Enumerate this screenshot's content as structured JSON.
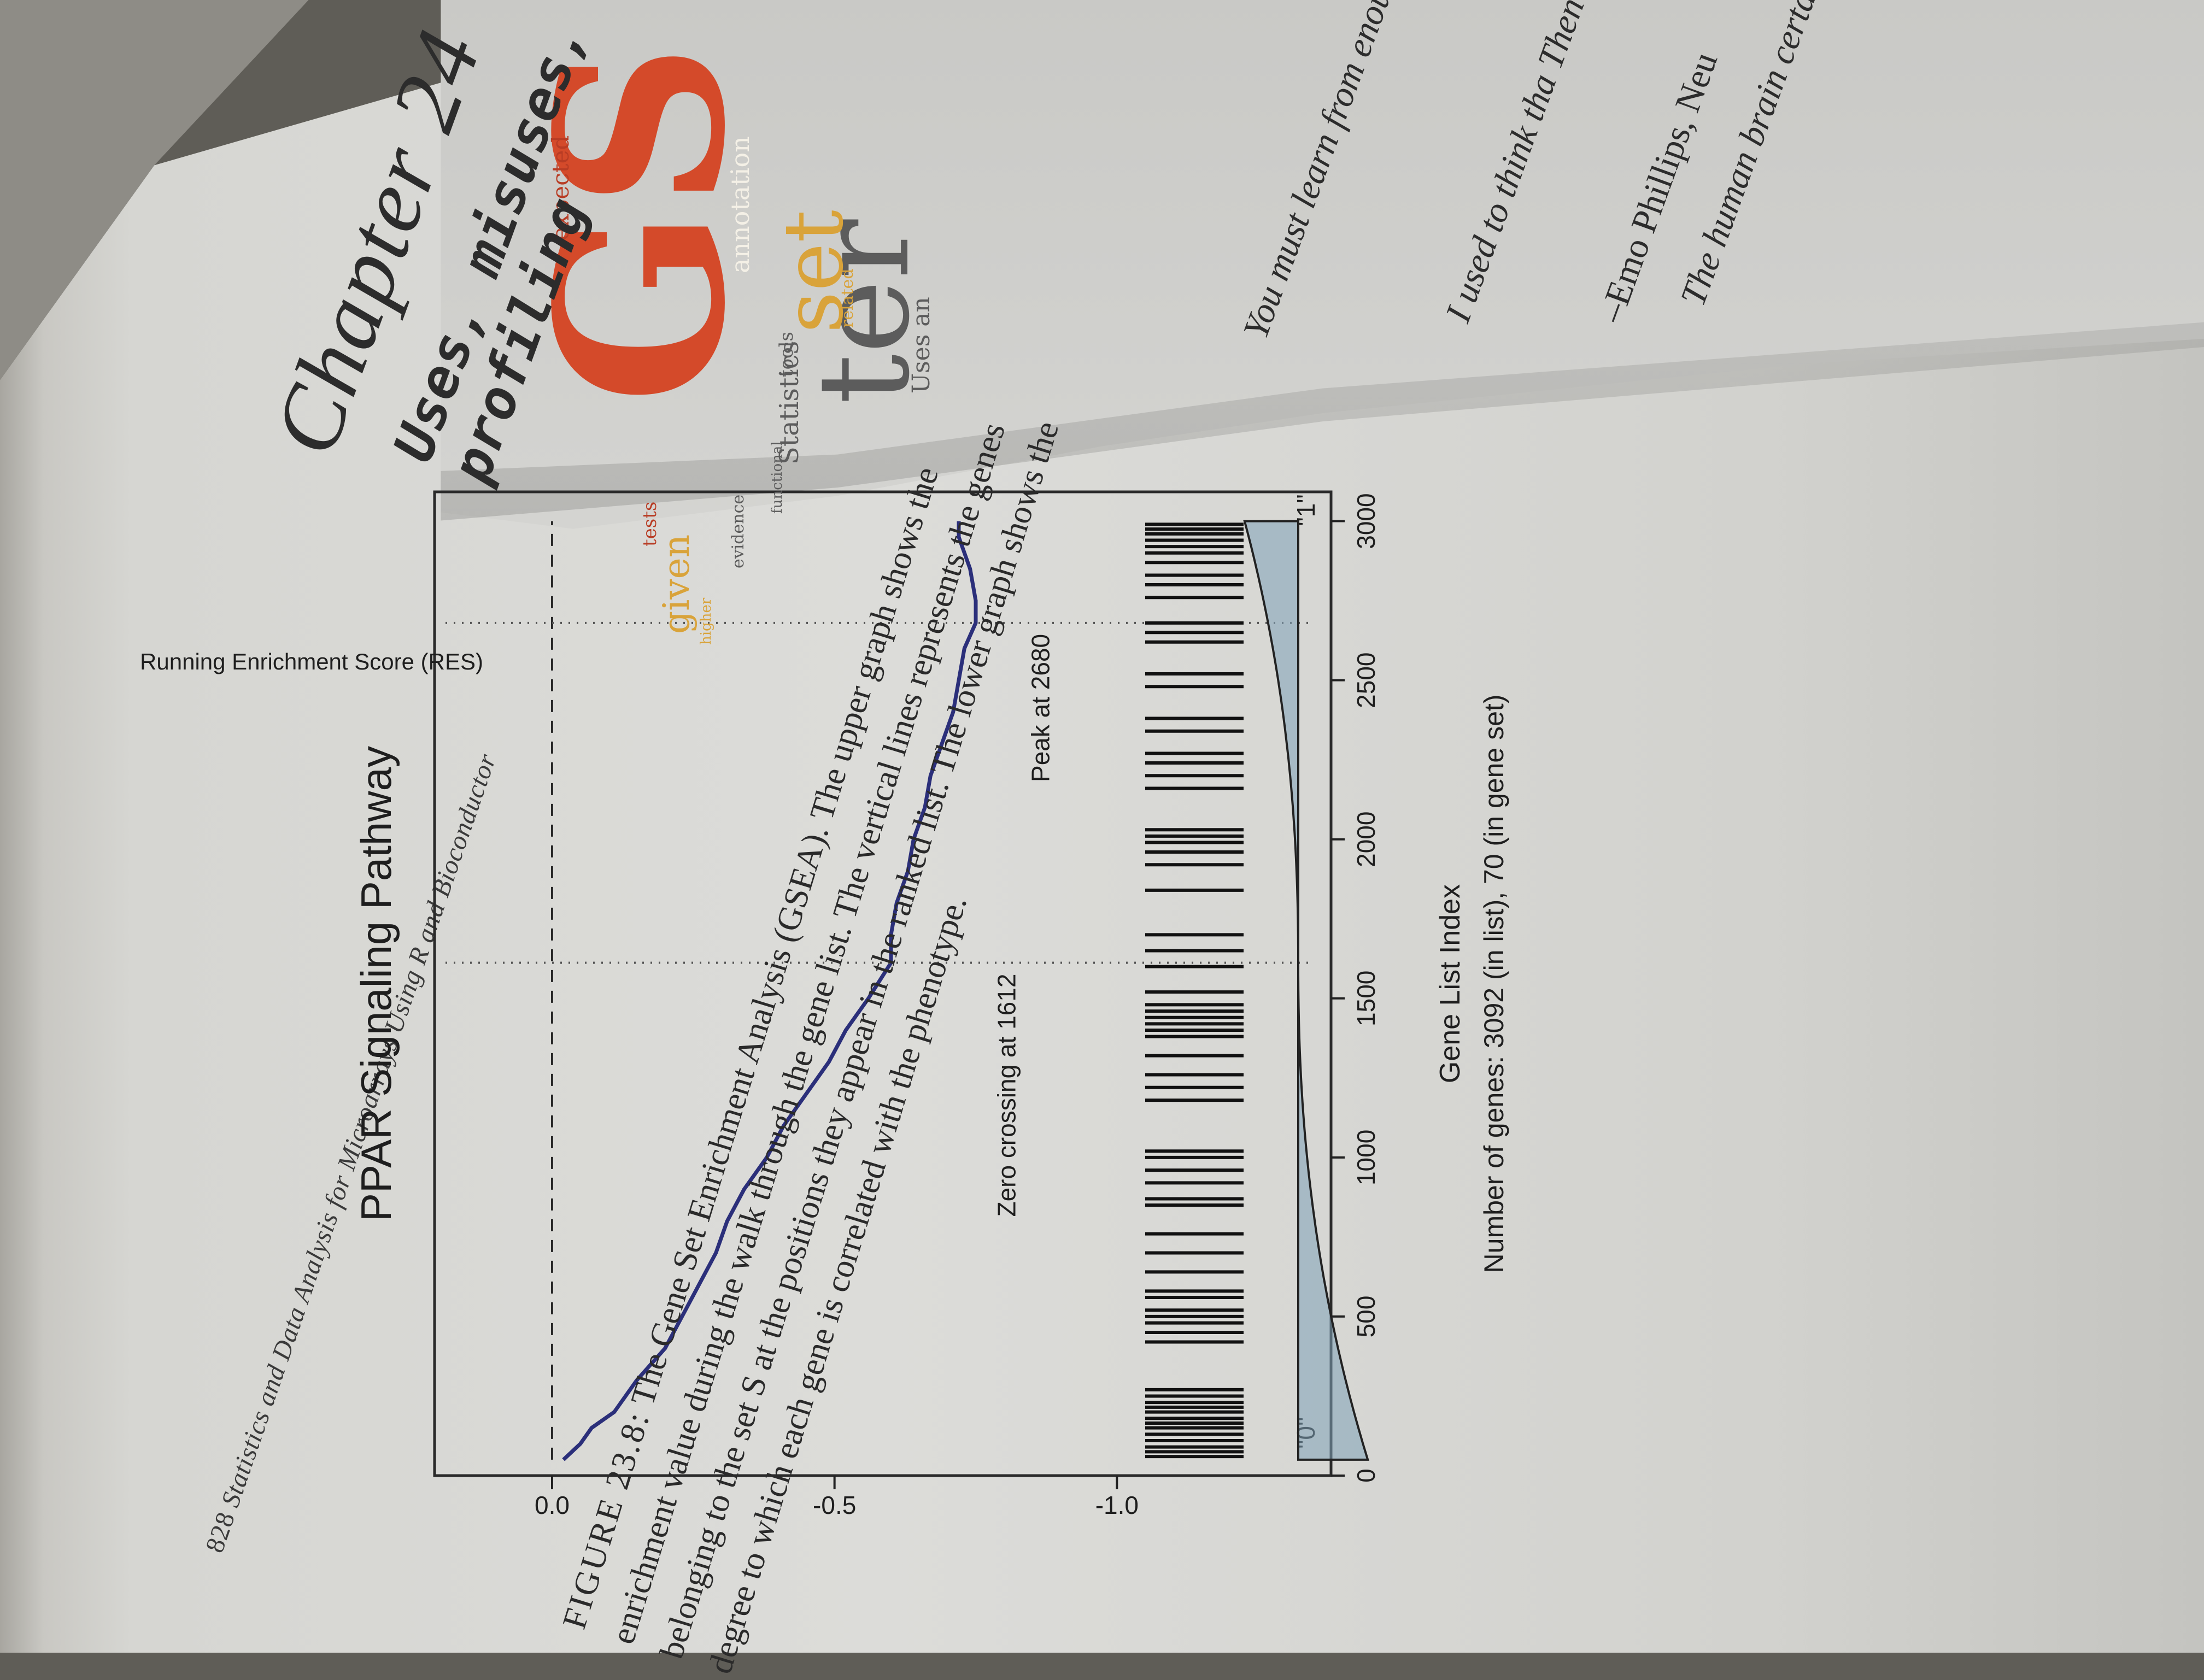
{
  "left_page": {
    "running_header": {
      "page_number": "828",
      "text": "Statistics and Data Analysis for Microarrays Using R and Bioconductor"
    },
    "figure": {
      "chart_data": {
        "type": "line",
        "title": "PPAR Signaling Pathway",
        "xlabel": "Gene List Index",
        "xlabel_sub": "Number of genes: 3092 (in list), 70 (in gene set)",
        "ylabel": "Running Enrichment Score (RES)",
        "xlim": [
          0,
          3092
        ],
        "ylim": [
          -1.05,
          0.15
        ],
        "x_ticks": [
          "0",
          "500",
          "1000",
          "1500",
          "2000",
          "2500",
          "3000"
        ],
        "x_tick_values": [
          0,
          500,
          1000,
          1500,
          2000,
          2500,
          3000
        ],
        "y_ticks": [
          "0.0",
          "-0.5",
          "-1.0"
        ],
        "y_tick_values": [
          0.0,
          -0.5,
          -1.0
        ],
        "series": [
          {
            "style": "solid",
            "color": "#2b2f7a",
            "x": [
              50,
              100,
              150,
              200,
              300,
              400,
              500,
              600,
              700,
              800,
              900,
              1000,
              1100,
              1200,
              1300,
              1400,
              1500,
              1612,
              1700,
              1800,
              1900,
              2000,
              2100,
              2200,
              2300,
              2400,
              2500,
              2600,
              2680,
              2750,
              2850,
              2950,
              3000
            ],
            "y": [
              -0.02,
              -0.05,
              -0.07,
              -0.11,
              -0.15,
              -0.2,
              -0.23,
              -0.26,
              -0.29,
              -0.31,
              -0.34,
              -0.38,
              -0.41,
              -0.45,
              -0.49,
              -0.52,
              -0.56,
              -0.6,
              -0.6,
              -0.61,
              -0.63,
              -0.64,
              -0.66,
              -0.67,
              -0.69,
              -0.71,
              -0.72,
              -0.73,
              -0.75,
              -0.75,
              -0.74,
              -0.72,
              -0.72
            ]
          },
          {
            "style": "dashed",
            "color": "#2a2a2a",
            "x": [
              50,
              3000
            ],
            "y": [
              0.0,
              0.0
            ]
          }
        ],
        "annotations": [
          {
            "text": "Zero crossing at 1612",
            "x": 1612
          },
          {
            "text": "Peak at 2680",
            "x": 2680
          },
          {
            "text": "\"0\"",
            "x": 50
          },
          {
            "text": "\"1\"",
            "x": 2950
          }
        ],
        "gene_set_positions": [
          60,
          75,
          90,
          110,
          130,
          150,
          165,
          180,
          200,
          215,
          230,
          250,
          270,
          420,
          450,
          480,
          500,
          520,
          560,
          580,
          640,
          700,
          760,
          850,
          870,
          920,
          960,
          1000,
          1020,
          1180,
          1220,
          1260,
          1320,
          1380,
          1400,
          1420,
          1440,
          1460,
          1480,
          1520,
          1600,
          1650,
          1700,
          1840,
          1920,
          1960,
          1990,
          2010,
          2030,
          2160,
          2200,
          2240,
          2270,
          2340,
          2380,
          2480,
          2520,
          2620,
          2650,
          2680,
          2760,
          2800,
          2830,
          2870,
          2900,
          2920,
          2940,
          2960,
          2975,
          2990
        ],
        "guide_lines_x": [
          1612,
          2680
        ],
        "area_fill": "#7fa3b8"
      }
    },
    "caption": {
      "label": "FIGURE 23.8:",
      "text": "The Gene Set Enrichment Analysis (GSEA). The upper graph shows the enrichment value during the walk through the gene list. The vertical lines represents the genes belonging to the set S at the positions they appear in the ranked list. The lower graph shows the degree to which each gene is correlated with the phenotype."
    }
  },
  "right_page": {
    "chapter_heading": "Chapter 24",
    "chapter_title": "Uses, misuses, a profiling",
    "word_cloud_words": [
      "expected",
      "annotation",
      "given",
      "tests",
      "tools",
      "related",
      "Statistics",
      "set",
      "ter",
      "Uses an",
      "evidence",
      "higher",
      "functional",
      "GS"
    ],
    "quotes": [
      "You must learn from enough to make the",
      "I used to think tha Then I realized wh",
      "The human brain certain capacity t"
    ],
    "quote_author": "–Emo Phillips, Neu",
    "accent_color": "#d44a2a",
    "secondary_color": "#d9a33a"
  }
}
